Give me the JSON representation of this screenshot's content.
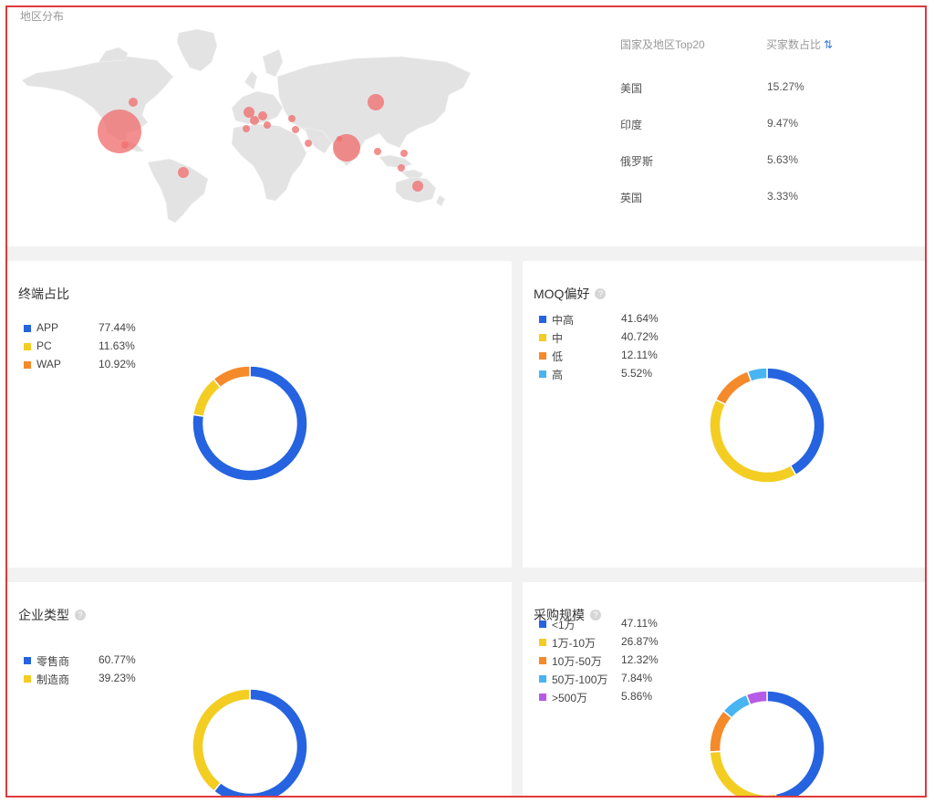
{
  "map_section": {
    "title": "地区分布",
    "rank_header_country": "国家及地区Top20",
    "rank_header_share": "买家数占比",
    "rows": [
      {
        "country": "美国",
        "share": "15.27%"
      },
      {
        "country": "印度",
        "share": "9.47%"
      },
      {
        "country": "俄罗斯",
        "share": "5.63%"
      },
      {
        "country": "英国",
        "share": "3.33%"
      }
    ],
    "map_fill": "#e3e3e3",
    "bubble_color": "#f07070"
  },
  "chart_data": [
    {
      "type": "pie",
      "title": "终端占比",
      "categories": [
        "APP",
        "PC",
        "WAP"
      ],
      "values": [
        77.44,
        11.63,
        10.92
      ],
      "labels": [
        "77.44%",
        "11.63%",
        "10.92%"
      ],
      "colors": [
        "#2563e0",
        "#f3cd22",
        "#f58a2a"
      ],
      "legend": "top-left",
      "help": false
    },
    {
      "type": "pie",
      "title": "MOQ偏好",
      "categories": [
        "中高",
        "中",
        "低",
        "高"
      ],
      "values": [
        41.64,
        40.72,
        12.11,
        5.52
      ],
      "labels": [
        "41.64%",
        "40.72%",
        "12.11%",
        "5.52%"
      ],
      "colors": [
        "#2563e0",
        "#f3cd22",
        "#f58a2a",
        "#48b4f2"
      ],
      "legend": "top-left",
      "help": true
    },
    {
      "type": "pie",
      "title": "企业类型",
      "categories": [
        "零售商",
        "制造商"
      ],
      "values": [
        60.77,
        39.23
      ],
      "labels": [
        "60.77%",
        "39.23%"
      ],
      "colors": [
        "#2563e0",
        "#f3cd22"
      ],
      "legend": "top-left",
      "help": true
    },
    {
      "type": "pie",
      "title": "采购规模",
      "categories": [
        "<1万",
        "1万-10万",
        "10万-50万",
        "50万-100万",
        ">500万"
      ],
      "values": [
        47.11,
        26.87,
        12.32,
        7.84,
        5.86
      ],
      "labels": [
        "47.11%",
        "26.87%",
        "12.32%",
        "7.84%",
        "5.86%"
      ],
      "colors": [
        "#2563e0",
        "#f3cd22",
        "#f58a2a",
        "#48b4f2",
        "#b65be6"
      ],
      "legend": "top-left",
      "help": true
    }
  ]
}
